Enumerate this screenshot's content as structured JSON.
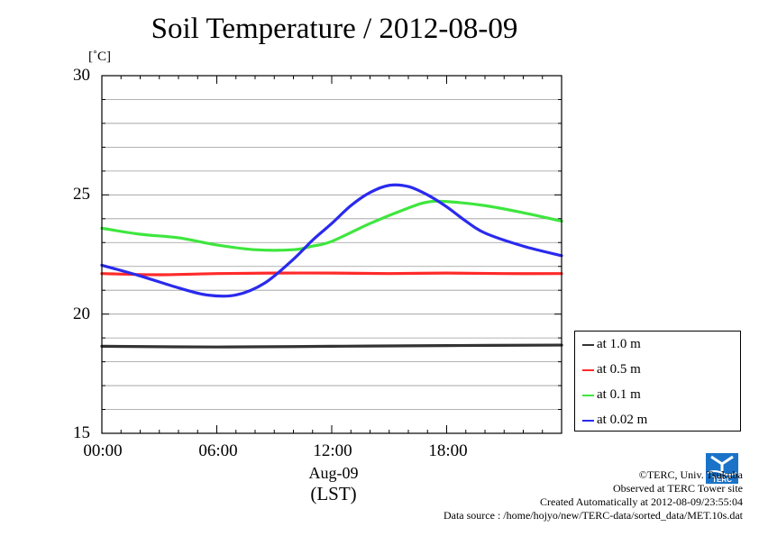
{
  "header": {
    "title": "Soil Temperature / 2012-08-09",
    "unit": "[˚C]"
  },
  "axes": {
    "y_ticks": [
      "15",
      "20",
      "25",
      "30"
    ],
    "x_ticks": [
      "00:00",
      "06:00",
      "12:00",
      "18:00"
    ],
    "date_label": "Aug-09",
    "tz_label": "(LST)"
  },
  "legend": [
    {
      "label": "at 1.0 m",
      "color": "#333333"
    },
    {
      "label": "at 0.5 m",
      "color": "#ff2a2a"
    },
    {
      "label": "at 0.1 m",
      "color": "#3ee63e"
    },
    {
      "label": "at 0.02 m",
      "color": "#2a2aee"
    }
  ],
  "credits": {
    "line1": "©TERC, Univ. Tsukuba",
    "line2": "Observed at TERC Tower site",
    "line3": "Created Automatically at 2012-08-09/23:55:04",
    "line4": "Data source : /home/hojyo/new/TERC-data/sorted_data/MET.10s.dat"
  },
  "logo": {
    "text": "TERC",
    "color": "#1a73c8"
  },
  "chart_data": {
    "type": "line",
    "title": "Soil Temperature / 2012-08-09",
    "ylabel": "[˚C]",
    "xlabel": "Aug-09 (LST)",
    "xlim": [
      0,
      24
    ],
    "ylim": [
      15,
      30
    ],
    "grid": true,
    "legend_position": "outside-right",
    "x_tick_labels": [
      "00:00",
      "06:00",
      "12:00",
      "18:00"
    ],
    "series": [
      {
        "name": "at 1.0 m",
        "color": "#333333",
        "x": [
          0,
          6,
          12,
          18,
          24
        ],
        "y": [
          18.65,
          18.62,
          18.65,
          18.68,
          18.7
        ]
      },
      {
        "name": "at 0.5 m",
        "color": "#ff2a2a",
        "x": [
          0,
          3,
          6,
          9,
          12,
          15,
          18,
          21,
          24
        ],
        "y": [
          21.7,
          21.65,
          21.7,
          21.72,
          21.72,
          21.7,
          21.72,
          21.7,
          21.7
        ]
      },
      {
        "name": "at 0.1 m",
        "color": "#3ee63e",
        "x": [
          0,
          2,
          4,
          6,
          8,
          10,
          11,
          12,
          14,
          16,
          17,
          18,
          20,
          22,
          24
        ],
        "y": [
          23.6,
          23.35,
          23.2,
          22.9,
          22.7,
          22.7,
          22.85,
          23.05,
          23.8,
          24.45,
          24.7,
          24.72,
          24.55,
          24.25,
          23.9
        ]
      },
      {
        "name": "at 0.02 m",
        "color": "#2a2aee",
        "x": [
          0,
          2,
          4,
          5.5,
          7,
          8.5,
          10,
          11,
          12,
          13,
          14,
          15,
          16,
          17,
          18,
          19,
          20,
          22,
          24
        ],
        "y": [
          22.05,
          21.6,
          21.1,
          20.8,
          20.8,
          21.3,
          22.3,
          23.1,
          23.8,
          24.55,
          25.1,
          25.4,
          25.35,
          25.0,
          24.5,
          23.9,
          23.4,
          22.85,
          22.45
        ]
      }
    ]
  }
}
